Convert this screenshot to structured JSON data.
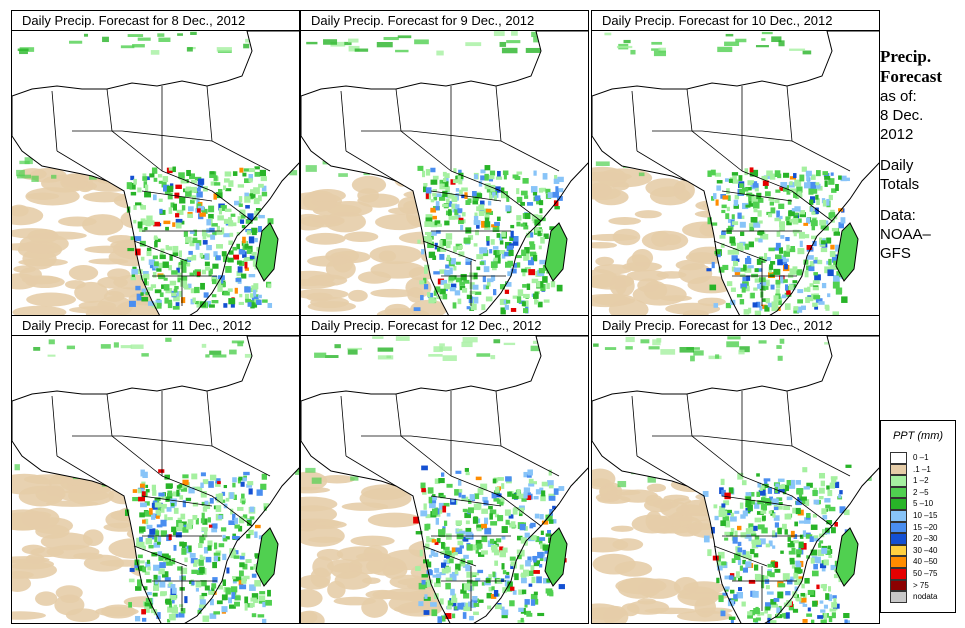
{
  "panels": [
    {
      "title": "Daily Precip. Forecast for  8 Dec., 2012"
    },
    {
      "title": "Daily Precip. Forecast for  9 Dec., 2012"
    },
    {
      "title": "Daily Precip. Forecast for  10 Dec., 2012"
    },
    {
      "title": "Daily Precip. Forecast for  11 Dec., 2012"
    },
    {
      "title": "Daily Precip. Forecast for  12 Dec., 2012"
    },
    {
      "title": "Daily Precip. Forecast for  13 Dec., 2012"
    }
  ],
  "side": {
    "title_line1": "Precip.",
    "title_line2": "Forecast",
    "as_of": "as of:",
    "date_line1": "8 Dec.",
    "date_line2": "2012",
    "daily_line1": "Daily",
    "daily_line2": "Totals",
    "data_line1": "Data:",
    "data_line2": "NOAA–",
    "data_line3": "GFS"
  },
  "legend": {
    "title": "PPT (mm)",
    "items": [
      {
        "label": "0 –1",
        "color": "#ffffff"
      },
      {
        "label": ".1 –1",
        "color": "#e6cda8"
      },
      {
        "label": "1 –2",
        "color": "#a5f0a0"
      },
      {
        "label": "2 –5",
        "color": "#50d050"
      },
      {
        "label": "5 –10",
        "color": "#28b428"
      },
      {
        "label": "10 –15",
        "color": "#88c4f8"
      },
      {
        "label": "15 –20",
        "color": "#4a8ef0"
      },
      {
        "label": "20 –30",
        "color": "#1450d2"
      },
      {
        "label": "30 –40",
        "color": "#ffd040"
      },
      {
        "label": "40 –50",
        "color": "#ff8c00"
      },
      {
        "label": "50 –75",
        "color": "#e60000"
      },
      {
        "label": "> 75",
        "color": "#8c0000"
      },
      {
        "label": "nodata",
        "color": "#c8c8c8"
      }
    ]
  }
}
